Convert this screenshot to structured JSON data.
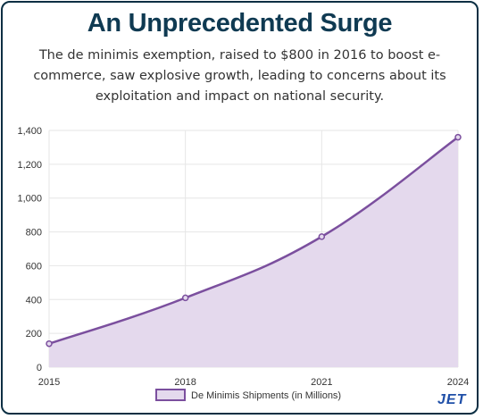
{
  "header": {
    "title": "An Unprecedented Surge",
    "subtitle": "The de minimis exemption, raised to $800 in 2016 to boost e-commerce, saw explosive growth, leading to concerns about its exploitation and impact on national security."
  },
  "brand": {
    "logo_text": "JET"
  },
  "colors": {
    "title": "#0f3a52",
    "line": "#7b4f9e",
    "fill": "#e4d9ed",
    "grid": "#e6e6e6",
    "border": "#0b2f43"
  },
  "chart_data": {
    "type": "area",
    "x": [
      "2015",
      "2018",
      "2021",
      "2024"
    ],
    "series": [
      {
        "name": "De Minimis Shipments (in Millions)",
        "values": [
          139,
          410,
          772,
          1360
        ]
      }
    ],
    "xlabel": "",
    "ylabel": "",
    "ylim": [
      0,
      1400
    ],
    "yticks": [
      "0",
      "200",
      "400",
      "600",
      "800",
      "1,000",
      "1,200",
      "1,400"
    ],
    "grid": true,
    "legend": "bottom-center"
  }
}
